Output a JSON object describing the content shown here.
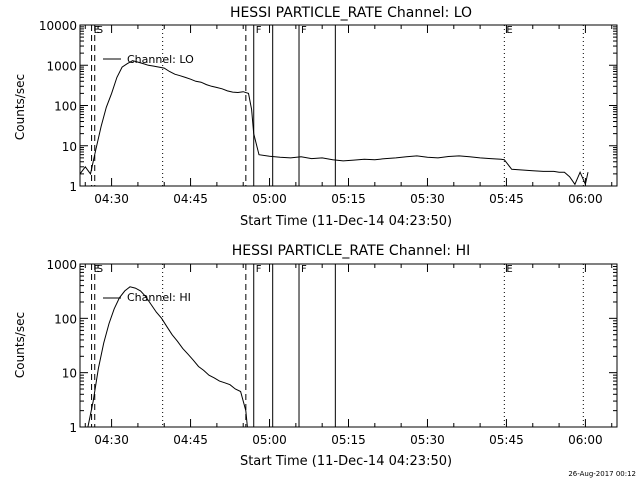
{
  "footer": {
    "timestamp": "26-Aug-2017 00:12"
  },
  "chart_data": [
    {
      "type": "line",
      "title": "HESSI PARTICLE_RATE Channel: LO",
      "xlabel": "Start Time (11-Dec-14 04:23:50)",
      "ylabel": "Counts/sec",
      "x_unit": "minutes_of_day",
      "xlim": [
        264,
        366
      ],
      "log_y": true,
      "ylim": [
        1,
        10000
      ],
      "y_tick_labels": [
        "1",
        "10",
        "100",
        "1000",
        "10000"
      ],
      "y_tick_values": [
        1,
        10,
        100,
        1000,
        10000
      ],
      "x_tick_labels": [
        "04:30",
        "04:45",
        "05:00",
        "05:15",
        "05:30",
        "05:45",
        "06:00"
      ],
      "x_tick_values": [
        270,
        285,
        300,
        315,
        330,
        345,
        360
      ],
      "legend": {
        "position": "top-left",
        "entries": [
          "Channel: LO"
        ]
      },
      "markers": [
        {
          "x": 266.2,
          "style": "dashed",
          "label": "E"
        },
        {
          "x": 266.8,
          "style": "dashed",
          "label": "S"
        },
        {
          "x": 279.7,
          "style": "dotted",
          "label": ""
        },
        {
          "x": 295.5,
          "style": "dashed",
          "label": ""
        },
        {
          "x": 297.0,
          "style": "solid",
          "label": "F"
        },
        {
          "x": 300.6,
          "style": "solid",
          "label": ""
        },
        {
          "x": 305.6,
          "style": "solid",
          "label": "F"
        },
        {
          "x": 312.5,
          "style": "solid",
          "label": ""
        },
        {
          "x": 344.6,
          "style": "dotted",
          "label": "E"
        },
        {
          "x": 359.6,
          "style": "dotted",
          "label": ""
        }
      ],
      "series": [
        {
          "x": [
            264.0,
            265.0,
            266.0,
            267.0,
            268.0,
            269.0,
            270.0,
            271.0,
            272.0,
            273.0,
            274.0,
            275.0,
            276.0,
            277.0,
            278.0,
            279.0,
            280.0,
            281.0,
            282.0,
            283.0,
            284.0,
            285.0,
            286.0,
            287.0,
            288.0,
            289.0,
            290.0,
            291.0,
            292.0,
            293.0,
            294.0,
            295.0,
            296.0,
            296.6,
            297.0,
            298.0,
            300.0,
            302.0,
            304.0,
            306.0,
            308.0,
            310.0,
            312.0,
            314.0,
            316.0,
            318.0,
            320.0,
            322.0,
            324.0,
            326.0,
            328.0,
            330.0,
            332.0,
            334.0,
            336.0,
            338.0,
            340.0,
            342.0,
            344.0,
            344.6,
            346.0,
            348.0,
            350.0,
            352.0,
            354.0,
            355.0,
            356.0,
            357.0,
            358.0,
            359.0,
            360.0,
            360.5
          ],
          "y": [
            2.0,
            3.0,
            2.0,
            8,
            30,
            90,
            200,
            500,
            900,
            1100,
            1300,
            1200,
            1100,
            1000,
            950,
            900,
            850,
            700,
            600,
            550,
            500,
            450,
            400,
            380,
            330,
            300,
            280,
            260,
            230,
            215,
            210,
            220,
            200,
            80,
            20,
            6,
            5.5,
            5.2,
            5.0,
            5.3,
            4.8,
            5.0,
            4.5,
            4.2,
            4.4,
            4.6,
            4.5,
            4.8,
            5.0,
            5.3,
            5.6,
            5.2,
            5.0,
            5.4,
            5.6,
            5.3,
            5.0,
            4.8,
            4.6,
            4.5,
            2.6,
            2.5,
            2.4,
            2.3,
            2.3,
            2.2,
            2.2,
            1.7,
            1.1,
            2.2,
            1.1,
            2.2
          ]
        }
      ]
    },
    {
      "type": "line",
      "title": "HESSI PARTICLE_RATE Channel: HI",
      "xlabel": "Start Time (11-Dec-14 04:23:50)",
      "ylabel": "Counts/sec",
      "x_unit": "minutes_of_day",
      "xlim": [
        264,
        366
      ],
      "log_y": true,
      "ylim": [
        1,
        1000
      ],
      "y_tick_labels": [
        "1",
        "10",
        "100",
        "1000"
      ],
      "y_tick_values": [
        1,
        10,
        100,
        1000
      ],
      "x_tick_labels": [
        "04:30",
        "04:45",
        "05:00",
        "05:15",
        "05:30",
        "05:45",
        "06:00"
      ],
      "x_tick_values": [
        270,
        285,
        300,
        315,
        330,
        345,
        360
      ],
      "legend": {
        "position": "top-left",
        "entries": [
          "Channel: HI"
        ]
      },
      "markers": [
        {
          "x": 266.2,
          "style": "dashed",
          "label": "E"
        },
        {
          "x": 266.8,
          "style": "dashed",
          "label": "S"
        },
        {
          "x": 279.7,
          "style": "dotted",
          "label": ""
        },
        {
          "x": 295.5,
          "style": "dashed",
          "label": ""
        },
        {
          "x": 297.0,
          "style": "solid",
          "label": "F"
        },
        {
          "x": 300.6,
          "style": "solid",
          "label": ""
        },
        {
          "x": 305.6,
          "style": "solid",
          "label": "F"
        },
        {
          "x": 312.5,
          "style": "solid",
          "label": ""
        },
        {
          "x": 344.6,
          "style": "dotted",
          "label": "E"
        },
        {
          "x": 359.6,
          "style": "dotted",
          "label": ""
        }
      ],
      "series": [
        {
          "x": [
            265.5,
            266.5,
            267.5,
            268.5,
            269.5,
            270.5,
            271.5,
            272.5,
            273.5,
            274.5,
            275.5,
            276.5,
            277.5,
            278.5,
            279.5,
            280.5,
            281.5,
            282.5,
            283.5,
            284.5,
            285.5,
            286.5,
            287.5,
            288.5,
            289.5,
            290.5,
            291.5,
            292.5,
            293.5,
            294.5,
            295.5,
            295.8
          ],
          "y": [
            1.0,
            3,
            12,
            35,
            80,
            150,
            240,
            320,
            380,
            360,
            320,
            250,
            180,
            130,
            100,
            70,
            50,
            38,
            28,
            22,
            17,
            13,
            11,
            9,
            8,
            7,
            6.5,
            6,
            5,
            4.5,
            2,
            1.0
          ]
        }
      ]
    }
  ]
}
